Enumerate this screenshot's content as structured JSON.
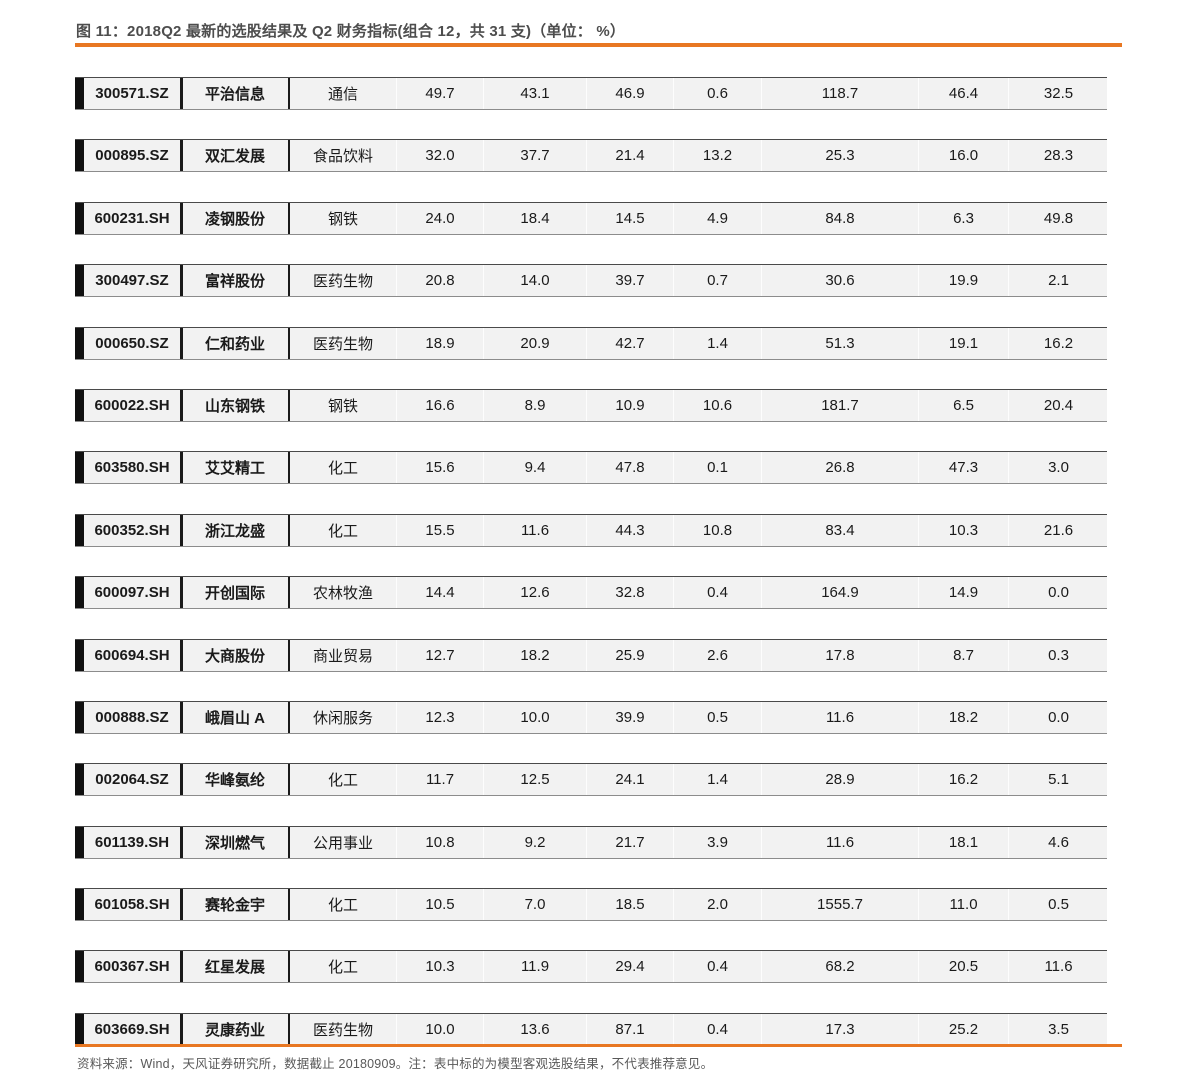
{
  "page": {
    "title": "图 11：2018Q2 最新的选股结果及 Q2 财务指标(组合 12，共 31 支)（单位： %）",
    "footer": "资料来源：Wind，天风证券研究所，数据截止 20180909。注：表中标的为模型客观选股结果，不代表推荐意见。"
  },
  "colors": {
    "accent_orange": "#E87722",
    "row_background": "#F2F2F2",
    "row_border_top": "#4A4A4A",
    "row_border_bottom": "#8C8C8C",
    "column_separator": "#1A1A1A",
    "row_left_cap": "#101010",
    "title_text": "#4D4D4D",
    "footer_text": "#595959",
    "cell_text": "#1A1A1A"
  },
  "chart_data": {
    "type": "table",
    "headers_visible": false,
    "rows": [
      {
        "code": "300571.SZ",
        "name": "平治信息",
        "industry": "通信",
        "values": [
          "49.7",
          "43.1",
          "46.9",
          "0.6",
          "118.7",
          "46.4",
          "32.5"
        ]
      },
      {
        "code": "000895.SZ",
        "name": "双汇发展",
        "industry": "食品饮料",
        "values": [
          "32.0",
          "37.7",
          "21.4",
          "13.2",
          "25.3",
          "16.0",
          "28.3"
        ]
      },
      {
        "code": "600231.SH",
        "name": "凌钢股份",
        "industry": "钢铁",
        "values": [
          "24.0",
          "18.4",
          "14.5",
          "4.9",
          "84.8",
          "6.3",
          "49.8"
        ]
      },
      {
        "code": "300497.SZ",
        "name": "富祥股份",
        "industry": "医药生物",
        "values": [
          "20.8",
          "14.0",
          "39.7",
          "0.7",
          "30.6",
          "19.9",
          "2.1"
        ]
      },
      {
        "code": "000650.SZ",
        "name": "仁和药业",
        "industry": "医药生物",
        "values": [
          "18.9",
          "20.9",
          "42.7",
          "1.4",
          "51.3",
          "19.1",
          "16.2"
        ]
      },
      {
        "code": "600022.SH",
        "name": "山东钢铁",
        "industry": "钢铁",
        "values": [
          "16.6",
          "8.9",
          "10.9",
          "10.6",
          "181.7",
          "6.5",
          "20.4"
        ]
      },
      {
        "code": "603580.SH",
        "name": "艾艾精工",
        "industry": "化工",
        "values": [
          "15.6",
          "9.4",
          "47.8",
          "0.1",
          "26.8",
          "47.3",
          "3.0"
        ]
      },
      {
        "code": "600352.SH",
        "name": "浙江龙盛",
        "industry": "化工",
        "values": [
          "15.5",
          "11.6",
          "44.3",
          "10.8",
          "83.4",
          "10.3",
          "21.6"
        ]
      },
      {
        "code": "600097.SH",
        "name": "开创国际",
        "industry": "农林牧渔",
        "values": [
          "14.4",
          "12.6",
          "32.8",
          "0.4",
          "164.9",
          "14.9",
          "0.0"
        ]
      },
      {
        "code": "600694.SH",
        "name": "大商股份",
        "industry": "商业贸易",
        "values": [
          "12.7",
          "18.2",
          "25.9",
          "2.6",
          "17.8",
          "8.7",
          "0.3"
        ]
      },
      {
        "code": "000888.SZ",
        "name": "峨眉山 A",
        "industry": "休闲服务",
        "values": [
          "12.3",
          "10.0",
          "39.9",
          "0.5",
          "11.6",
          "18.2",
          "0.0"
        ]
      },
      {
        "code": "002064.SZ",
        "name": "华峰氨纶",
        "industry": "化工",
        "values": [
          "11.7",
          "12.5",
          "24.1",
          "1.4",
          "28.9",
          "16.2",
          "5.1"
        ]
      },
      {
        "code": "601139.SH",
        "name": "深圳燃气",
        "industry": "公用事业",
        "values": [
          "10.8",
          "9.2",
          "21.7",
          "3.9",
          "11.6",
          "18.1",
          "4.6"
        ]
      },
      {
        "code": "601058.SH",
        "name": "赛轮金宇",
        "industry": "化工",
        "values": [
          "10.5",
          "7.0",
          "18.5",
          "2.0",
          "1555.7",
          "11.0",
          "0.5"
        ]
      },
      {
        "code": "600367.SH",
        "name": "红星发展",
        "industry": "化工",
        "values": [
          "10.3",
          "11.9",
          "29.4",
          "0.4",
          "68.2",
          "20.5",
          "11.6"
        ]
      },
      {
        "code": "603669.SH",
        "name": "灵康药业",
        "industry": "医药生物",
        "values": [
          "10.0",
          "13.6",
          "87.1",
          "0.4",
          "17.3",
          "25.2",
          "3.5"
        ]
      }
    ]
  }
}
